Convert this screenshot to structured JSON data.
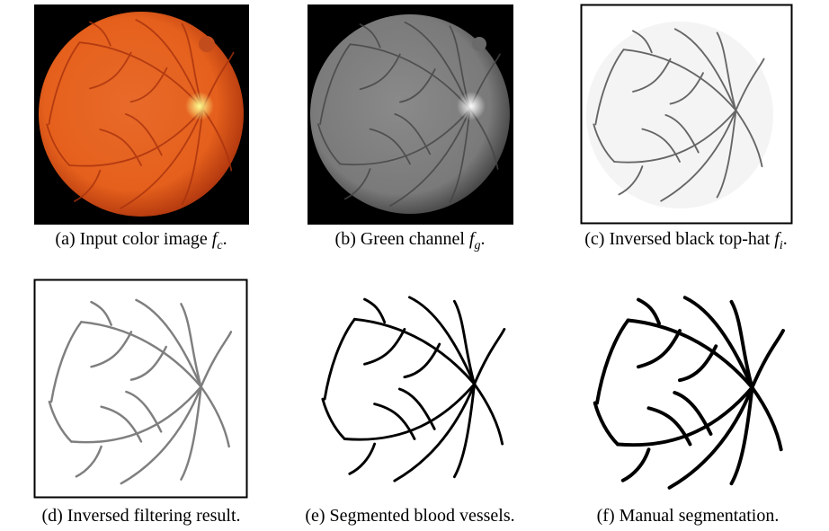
{
  "figure": {
    "panels": [
      {
        "label": "(a) Input color image",
        "math": "f",
        "sub": "c",
        "end": "."
      },
      {
        "label": "(b) Green channel",
        "math": "f",
        "sub": "g",
        "end": "."
      },
      {
        "label": "(c) Inversed black top-hat",
        "math": "f",
        "sub": "i",
        "end": "."
      },
      {
        "label": "(d) Inversed filtering result.",
        "math": null,
        "sub": null,
        "end": null
      },
      {
        "label": "(e) Segmented blood vessels.",
        "math": null,
        "sub": null,
        "end": null
      },
      {
        "label": "(f) Manual segmentation.",
        "math": null,
        "sub": null,
        "end": null
      }
    ]
  }
}
